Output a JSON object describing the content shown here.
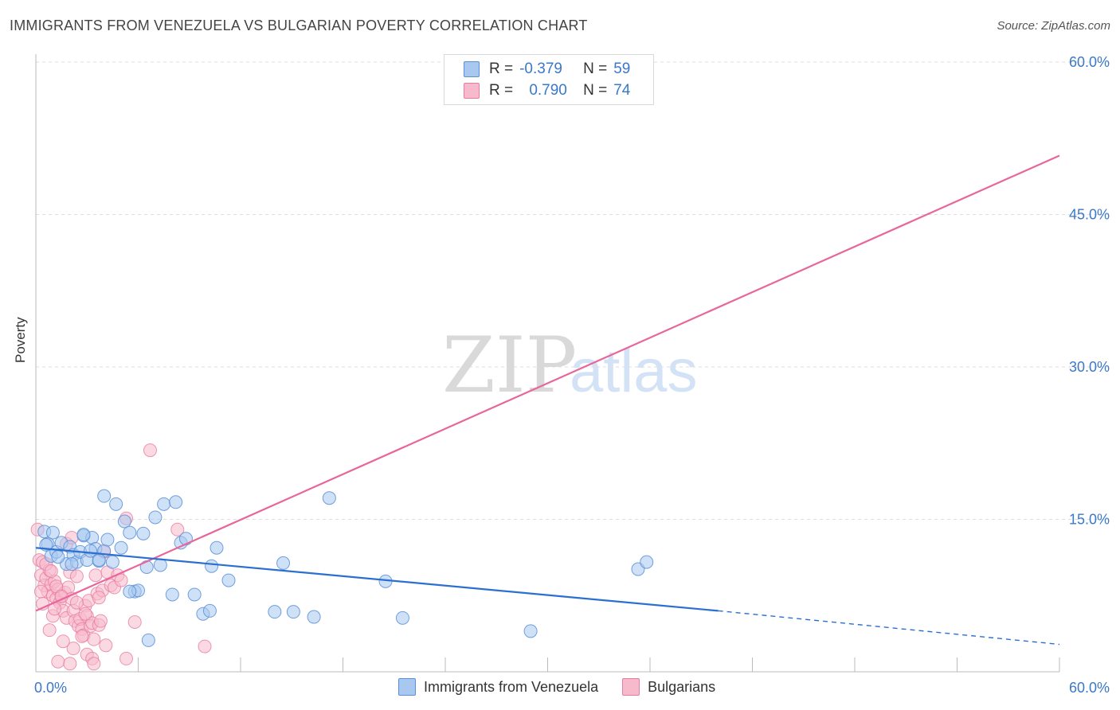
{
  "title": "IMMIGRANTS FROM VENEZUELA VS BULGARIAN POVERTY CORRELATION CHART",
  "source": "Source: ZipAtlas.com",
  "watermark": {
    "zip": "ZIP",
    "atlas": "atlas"
  },
  "legend": {
    "rows": [
      {
        "r_label": "R =",
        "r_value": "-0.379",
        "n_label": "N =",
        "n_value": "59"
      },
      {
        "r_label": "R =",
        "r_value": "0.790",
        "n_label": "N =",
        "n_value": "74"
      }
    ]
  },
  "bottom_legend": [
    "Immigrants from Venezuela",
    "Bulgarians"
  ],
  "colors": {
    "blue_fill": "#a8c8f0",
    "blue_stroke": "#5b8fd6",
    "blue_line": "#2b6fcf",
    "pink_fill": "#f7b9cc",
    "pink_stroke": "#e87da0",
    "pink_line": "#e8669a",
    "axis_text": "#3a78c9",
    "grid": "#dddddd"
  },
  "chart_data": {
    "type": "scatter",
    "title": "IMMIGRANTS FROM VENEZUELA VS BULGARIAN POVERTY CORRELATION CHART",
    "xlabel": "",
    "ylabel": "Poverty",
    "xlim": [
      0,
      60
    ],
    "ylim": [
      0,
      60
    ],
    "x_tick_labels": [
      "0.0%",
      "60.0%"
    ],
    "y_ticks": [
      15,
      30,
      45,
      60
    ],
    "y_tick_labels": [
      "15.0%",
      "30.0%",
      "45.0%",
      "60.0%"
    ],
    "grid": true,
    "series": [
      {
        "name": "Immigrants from Venezuela",
        "r": -0.379,
        "n": 59,
        "trend": {
          "x0": 0,
          "y0": 12.2,
          "x1": 40,
          "y1": 6.0,
          "dash_to_x": 60,
          "dash_to_y": 2.7
        },
        "points": [
          [
            0.5,
            13.8
          ],
          [
            0.7,
            12.6
          ],
          [
            0.9,
            11.4
          ],
          [
            1.2,
            11.8
          ],
          [
            1.5,
            12.7
          ],
          [
            1.8,
            10.6
          ],
          [
            2.0,
            12.3
          ],
          [
            2.2,
            11.5
          ],
          [
            2.4,
            10.8
          ],
          [
            2.6,
            11.8
          ],
          [
            2.8,
            13.4
          ],
          [
            3.0,
            11.0
          ],
          [
            3.3,
            13.2
          ],
          [
            3.5,
            12.1
          ],
          [
            3.7,
            10.9
          ],
          [
            4.0,
            11.9
          ],
          [
            4.2,
            13.0
          ],
          [
            4.5,
            10.8
          ],
          [
            4.7,
            16.5
          ],
          [
            5.0,
            12.2
          ],
          [
            5.2,
            14.8
          ],
          [
            5.5,
            13.7
          ],
          [
            5.8,
            7.9
          ],
          [
            6.0,
            8.0
          ],
          [
            6.3,
            13.6
          ],
          [
            6.5,
            10.3
          ],
          [
            7.0,
            15.2
          ],
          [
            7.3,
            10.5
          ],
          [
            7.5,
            16.5
          ],
          [
            8.0,
            7.6
          ],
          [
            8.2,
            16.7
          ],
          [
            8.5,
            12.7
          ],
          [
            8.8,
            13.1
          ],
          [
            9.3,
            7.6
          ],
          [
            9.8,
            5.7
          ],
          [
            10.2,
            6.0
          ],
          [
            10.3,
            10.4
          ],
          [
            10.6,
            12.2
          ],
          [
            11.3,
            9.0
          ],
          [
            14.0,
            5.9
          ],
          [
            14.5,
            10.7
          ],
          [
            15.1,
            5.9
          ],
          [
            16.3,
            5.4
          ],
          [
            17.2,
            17.1
          ],
          [
            20.5,
            8.9
          ],
          [
            21.5,
            5.3
          ],
          [
            29.0,
            4.0
          ],
          [
            35.3,
            10.1
          ],
          [
            35.8,
            10.8
          ],
          [
            4.0,
            17.3
          ],
          [
            2.8,
            13.5
          ],
          [
            3.7,
            11.0
          ],
          [
            1.3,
            11.3
          ],
          [
            2.1,
            10.6
          ],
          [
            1.0,
            13.7
          ],
          [
            0.6,
            12.5
          ],
          [
            5.5,
            7.9
          ],
          [
            6.6,
            3.1
          ],
          [
            3.2,
            11.9
          ]
        ]
      },
      {
        "name": "Bulgarians",
        "r": 0.79,
        "n": 74,
        "trend": {
          "x0": 0,
          "y0": 6.0,
          "x1": 60,
          "y1": 50.8
        },
        "points": [
          [
            0.1,
            14.0
          ],
          [
            0.2,
            11.0
          ],
          [
            0.3,
            9.5
          ],
          [
            0.4,
            10.8
          ],
          [
            0.5,
            8.5
          ],
          [
            0.6,
            9.2
          ],
          [
            0.7,
            7.9
          ],
          [
            0.8,
            10.0
          ],
          [
            0.9,
            8.6
          ],
          [
            1.0,
            7.5
          ],
          [
            1.1,
            8.9
          ],
          [
            1.2,
            7.2
          ],
          [
            1.3,
            8.1
          ],
          [
            1.4,
            6.8
          ],
          [
            1.5,
            7.5
          ],
          [
            1.6,
            6.0
          ],
          [
            1.7,
            7.8
          ],
          [
            1.8,
            5.3
          ],
          [
            1.9,
            8.3
          ],
          [
            2.0,
            9.8
          ],
          [
            2.1,
            7.2
          ],
          [
            2.2,
            6.0
          ],
          [
            2.3,
            5.0
          ],
          [
            2.4,
            9.4
          ],
          [
            2.5,
            4.5
          ],
          [
            2.6,
            5.2
          ],
          [
            2.7,
            4.2
          ],
          [
            2.8,
            3.6
          ],
          [
            2.9,
            6.5
          ],
          [
            3.0,
            5.5
          ],
          [
            3.1,
            7.0
          ],
          [
            3.2,
            4.5
          ],
          [
            3.3,
            4.8
          ],
          [
            3.4,
            3.2
          ],
          [
            3.5,
            9.5
          ],
          [
            3.6,
            7.7
          ],
          [
            3.7,
            4.6
          ],
          [
            3.8,
            5.0
          ],
          [
            3.9,
            8.0
          ],
          [
            4.0,
            11.8
          ],
          [
            4.2,
            9.8
          ],
          [
            4.4,
            8.5
          ],
          [
            4.6,
            8.3
          ],
          [
            4.8,
            9.5
          ],
          [
            5.0,
            9.0
          ],
          [
            5.3,
            15.1
          ],
          [
            5.8,
            4.9
          ],
          [
            6.7,
            21.8
          ],
          [
            8.3,
            14.0
          ],
          [
            9.9,
            2.5
          ],
          [
            0.3,
            7.9
          ],
          [
            0.6,
            10.6
          ],
          [
            0.9,
            9.9
          ],
          [
            1.2,
            8.4
          ],
          [
            1.5,
            7.4
          ],
          [
            1.8,
            12.6
          ],
          [
            2.1,
            13.2
          ],
          [
            2.4,
            6.8
          ],
          [
            2.7,
            3.5
          ],
          [
            3.0,
            1.7
          ],
          [
            3.3,
            1.3
          ],
          [
            1.3,
            1.0
          ],
          [
            5.3,
            1.3
          ],
          [
            4.1,
            2.6
          ],
          [
            2.0,
            0.8
          ],
          [
            1.0,
            5.5
          ],
          [
            0.4,
            6.7
          ],
          [
            1.1,
            6.2
          ],
          [
            3.4,
            0.8
          ],
          [
            2.2,
            2.3
          ],
          [
            0.8,
            4.1
          ],
          [
            1.6,
            3.0
          ],
          [
            2.9,
            5.7
          ],
          [
            3.7,
            7.3
          ]
        ]
      }
    ]
  }
}
